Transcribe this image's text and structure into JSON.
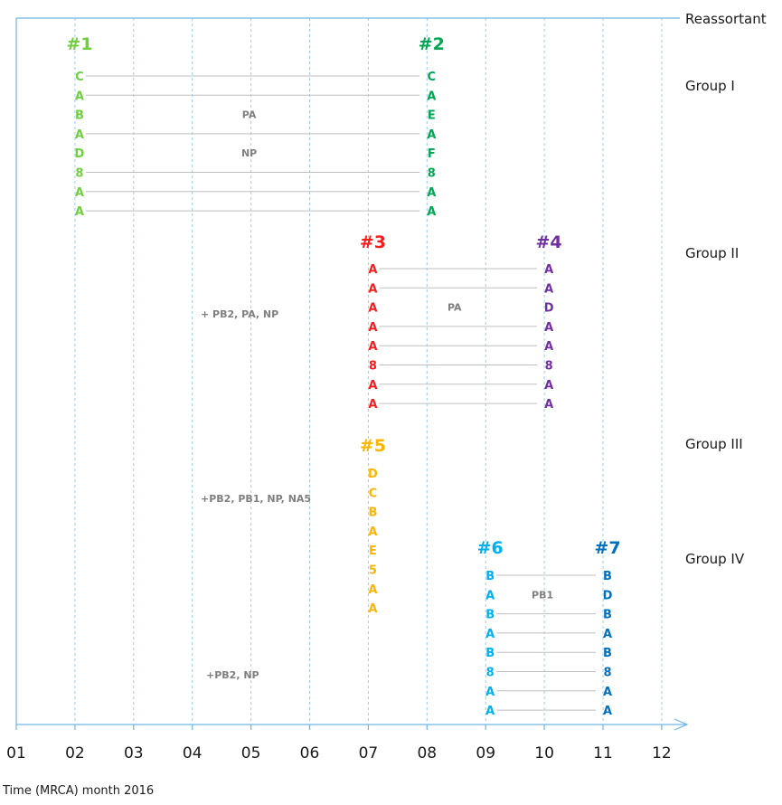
{
  "colors": {
    "grid": "#9ccbea",
    "axis": "#6eb6e6",
    "connector": "#bfbfbf",
    "note": "#7f7f7f",
    "label": "#1a1a1a",
    "r1": "#6fcf3c",
    "r2": "#00a651",
    "r3": "#ff1a1a",
    "r4": "#7030a0",
    "r5": "#ffb400",
    "r6": "#00b0f0",
    "r7": "#0070c0"
  },
  "axis": {
    "ticks": [
      "01",
      "02",
      "03",
      "04",
      "05",
      "06",
      "07",
      "08",
      "09",
      "10",
      "11",
      "12"
    ],
    "caption": "Time (MRCA) month 2016"
  },
  "right_labels": [
    "Reassortant",
    "Group I",
    "Group II",
    "Group III",
    "Group IV"
  ],
  "reassortants": [
    {
      "id": "#1",
      "month": 2,
      "color": "r1",
      "segments": [
        "C",
        "A",
        "B",
        "A",
        "D",
        "8",
        "A",
        "A"
      ]
    },
    {
      "id": "#2",
      "month": 8,
      "color": "r2",
      "segments": [
        "C",
        "A",
        "E",
        "A",
        "F",
        "8",
        "A",
        "A"
      ]
    },
    {
      "id": "#3",
      "month": 7,
      "color": "r3",
      "segments": [
        "A",
        "A",
        "A",
        "A",
        "A",
        "8",
        "A",
        "A"
      ]
    },
    {
      "id": "#4",
      "month": 10,
      "color": "r4",
      "segments": [
        "A",
        "A",
        "D",
        "A",
        "A",
        "8",
        "A",
        "A"
      ]
    },
    {
      "id": "#5",
      "month": 7,
      "color": "r5",
      "segments": [
        "D",
        "C",
        "B",
        "A",
        "E",
        "5",
        "A",
        "A"
      ]
    },
    {
      "id": "#6",
      "month": 9,
      "color": "r6",
      "segments": [
        "B",
        "A",
        "B",
        "A",
        "B",
        "8",
        "A",
        "A"
      ]
    },
    {
      "id": "#7",
      "month": 11,
      "color": "r7",
      "segments": [
        "B",
        "D",
        "B",
        "A",
        "B",
        "8",
        "A",
        "A"
      ]
    }
  ],
  "links": [
    {
      "from": "#1",
      "to": "#2",
      "skip": [
        2,
        4
      ],
      "labels": [
        {
          "row": 2,
          "text": "PA"
        },
        {
          "row": 4,
          "text": "NP"
        }
      ]
    },
    {
      "from": "#3",
      "to": "#4",
      "skip": [
        2
      ],
      "labels": [
        {
          "row": 2,
          "text": "PA"
        }
      ]
    },
    {
      "from": "#6",
      "to": "#7",
      "skip": [
        1
      ],
      "labels": [
        {
          "row": 1,
          "text": "PB1"
        }
      ]
    }
  ],
  "notes": [
    "+ PB2, PA, NP",
    "+PB2, PB1,  NP, NA5",
    "+PB2, NP"
  ]
}
